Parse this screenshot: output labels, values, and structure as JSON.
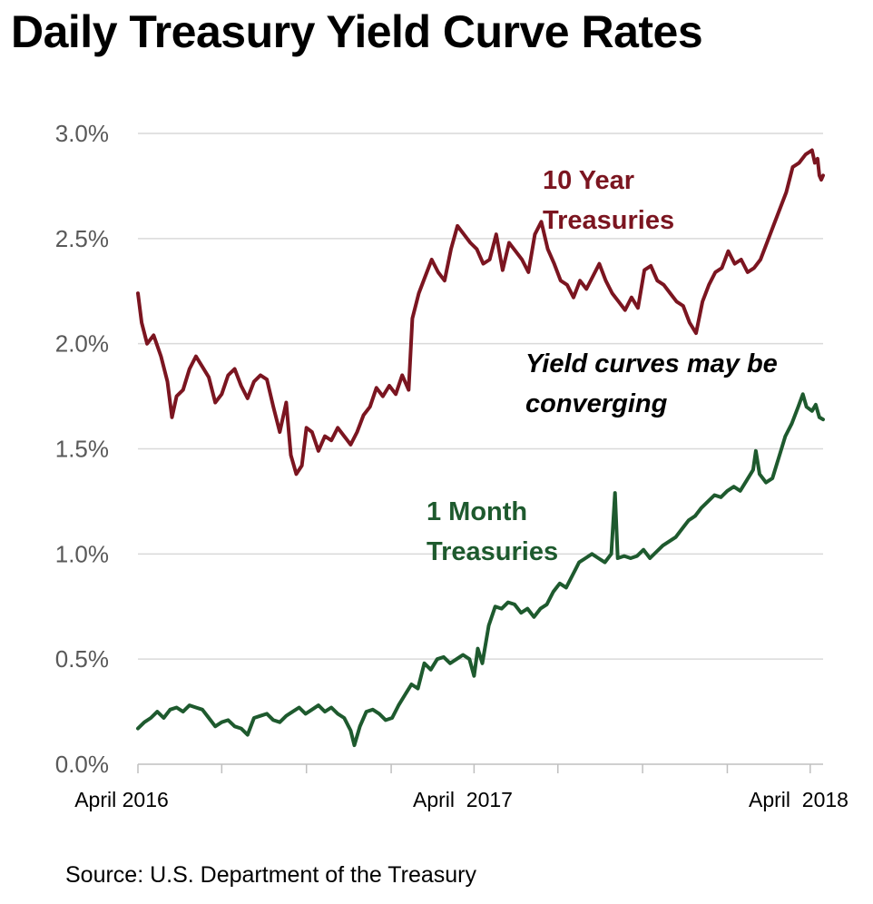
{
  "title": "Daily Treasury Yield Curve Rates",
  "source": "Source: U.S. Department of the Treasury",
  "annotation": [
    "Yield curves may be",
    "converging"
  ],
  "colors": {
    "ten_year": "#7b1520",
    "one_month": "#1e5a2e",
    "grid": "#d9d9d9",
    "axis": "#bfbfbf",
    "tick_text": "#595959"
  },
  "chart_data": {
    "type": "line",
    "x_tick_labels": [
      "April 2016",
      "April  2017",
      "April  2018"
    ],
    "y_tick_labels": [
      "0.0%",
      "0.5%",
      "1.0%",
      "1.5%",
      "2.0%",
      "2.5%",
      "3.0%"
    ],
    "ylim": [
      0,
      3.0
    ],
    "xlim": [
      "2016-04-01",
      "2018-04-15"
    ],
    "grid": true,
    "series": [
      {
        "name": "10 Year Treasuries",
        "name_lines": [
          "10 Year",
          "Treasuries"
        ],
        "color": "#7b1520",
        "points": [
          [
            "2016-04-01",
            2.24
          ],
          [
            "2016-04-05",
            2.1
          ],
          [
            "2016-04-11",
            2.0
          ],
          [
            "2016-04-18",
            2.04
          ],
          [
            "2016-04-26",
            1.94
          ],
          [
            "2016-05-03",
            1.82
          ],
          [
            "2016-05-08",
            1.65
          ],
          [
            "2016-05-13",
            1.75
          ],
          [
            "2016-05-20",
            1.78
          ],
          [
            "2016-05-27",
            1.88
          ],
          [
            "2016-06-03",
            1.94
          ],
          [
            "2016-06-10",
            1.89
          ],
          [
            "2016-06-17",
            1.84
          ],
          [
            "2016-06-24",
            1.72
          ],
          [
            "2016-07-01",
            1.76
          ],
          [
            "2016-07-08",
            1.85
          ],
          [
            "2016-07-15",
            1.88
          ],
          [
            "2016-07-22",
            1.8
          ],
          [
            "2016-07-29",
            1.74
          ],
          [
            "2016-08-05",
            1.82
          ],
          [
            "2016-08-12",
            1.85
          ],
          [
            "2016-08-19",
            1.83
          ],
          [
            "2016-08-26",
            1.7
          ],
          [
            "2016-09-02",
            1.58
          ],
          [
            "2016-09-09",
            1.72
          ],
          [
            "2016-09-14",
            1.47
          ],
          [
            "2016-09-20",
            1.38
          ],
          [
            "2016-09-26",
            1.42
          ],
          [
            "2016-10-01",
            1.6
          ],
          [
            "2016-10-07",
            1.58
          ],
          [
            "2016-10-14",
            1.49
          ],
          [
            "2016-10-21",
            1.56
          ],
          [
            "2016-10-28",
            1.54
          ],
          [
            "2016-11-04",
            1.6
          ],
          [
            "2016-11-11",
            1.56
          ],
          [
            "2016-11-18",
            1.52
          ],
          [
            "2016-11-25",
            1.58
          ],
          [
            "2016-12-02",
            1.66
          ],
          [
            "2016-12-09",
            1.7
          ],
          [
            "2016-12-16",
            1.79
          ],
          [
            "2016-12-23",
            1.75
          ],
          [
            "2016-12-30",
            1.8
          ],
          [
            "2017-01-06",
            1.76
          ],
          [
            "2017-01-13",
            1.85
          ],
          [
            "2017-01-20",
            1.78
          ],
          [
            "2017-01-24",
            2.12
          ],
          [
            "2017-01-31",
            2.24
          ],
          [
            "2017-02-07",
            2.32
          ],
          [
            "2017-02-14",
            2.4
          ],
          [
            "2017-02-21",
            2.34
          ],
          [
            "2017-02-28",
            2.3
          ],
          [
            "2017-03-07",
            2.45
          ],
          [
            "2017-03-14",
            2.56
          ],
          [
            "2017-03-21",
            2.52
          ],
          [
            "2017-03-28",
            2.48
          ],
          [
            "2017-04-04",
            2.45
          ],
          [
            "2017-04-11",
            2.38
          ],
          [
            "2017-04-18",
            2.4
          ],
          [
            "2017-04-25",
            2.52
          ],
          [
            "2017-05-02",
            2.35
          ],
          [
            "2017-05-09",
            2.48
          ],
          [
            "2017-05-16",
            2.44
          ],
          [
            "2017-05-23",
            2.4
          ],
          [
            "2017-05-30",
            2.34
          ],
          [
            "2017-06-06",
            2.52
          ],
          [
            "2017-06-13",
            2.58
          ],
          [
            "2017-06-20",
            2.45
          ],
          [
            "2017-06-27",
            2.38
          ],
          [
            "2017-07-04",
            2.3
          ],
          [
            "2017-07-11",
            2.28
          ],
          [
            "2017-07-18",
            2.22
          ],
          [
            "2017-07-25",
            2.3
          ],
          [
            "2017-08-01",
            2.26
          ],
          [
            "2017-08-08",
            2.32
          ],
          [
            "2017-08-15",
            2.38
          ],
          [
            "2017-08-22",
            2.3
          ],
          [
            "2017-08-29",
            2.24
          ],
          [
            "2017-09-05",
            2.2
          ],
          [
            "2017-09-12",
            2.16
          ],
          [
            "2017-09-19",
            2.22
          ],
          [
            "2017-09-26",
            2.17
          ],
          [
            "2017-10-03",
            2.35
          ],
          [
            "2017-10-10",
            2.37
          ],
          [
            "2017-10-17",
            2.3
          ],
          [
            "2017-10-24",
            2.28
          ],
          [
            "2017-10-31",
            2.24
          ],
          [
            "2017-11-07",
            2.2
          ],
          [
            "2017-11-14",
            2.18
          ],
          [
            "2017-11-21",
            2.1
          ],
          [
            "2017-11-28",
            2.05
          ],
          [
            "2017-12-05",
            2.2
          ],
          [
            "2017-12-12",
            2.28
          ],
          [
            "2017-12-19",
            2.34
          ],
          [
            "2017-12-26",
            2.36
          ],
          [
            "2018-01-02",
            2.44
          ],
          [
            "2018-01-09",
            2.38
          ],
          [
            "2018-01-16",
            2.4
          ],
          [
            "2018-01-23",
            2.34
          ],
          [
            "2018-01-30",
            2.36
          ],
          [
            "2018-02-06",
            2.4
          ],
          [
            "2018-02-13",
            2.48
          ],
          [
            "2018-02-20",
            2.56
          ],
          [
            "2018-02-27",
            2.64
          ],
          [
            "2018-03-06",
            2.72
          ],
          [
            "2018-03-13",
            2.84
          ],
          [
            "2018-03-20",
            2.86
          ],
          [
            "2018-03-27",
            2.9
          ],
          [
            "2018-04-03",
            2.92
          ],
          [
            "2018-04-06",
            2.86
          ],
          [
            "2018-04-09",
            2.88
          ],
          [
            "2018-04-11",
            2.8
          ],
          [
            "2018-04-13",
            2.78
          ],
          [
            "2018-04-15",
            2.8
          ]
        ]
      },
      {
        "name": "1 Month Treasuries",
        "name_lines": [
          "1 Month",
          "Treasuries"
        ],
        "color": "#1e5a2e",
        "points": [
          [
            "2016-04-01",
            0.17
          ],
          [
            "2016-04-08",
            0.2
          ],
          [
            "2016-04-15",
            0.22
          ],
          [
            "2016-04-22",
            0.25
          ],
          [
            "2016-04-29",
            0.22
          ],
          [
            "2016-05-06",
            0.26
          ],
          [
            "2016-05-13",
            0.27
          ],
          [
            "2016-05-20",
            0.25
          ],
          [
            "2016-05-27",
            0.28
          ],
          [
            "2016-06-03",
            0.27
          ],
          [
            "2016-06-10",
            0.26
          ],
          [
            "2016-06-17",
            0.22
          ],
          [
            "2016-06-24",
            0.18
          ],
          [
            "2016-07-01",
            0.2
          ],
          [
            "2016-07-08",
            0.21
          ],
          [
            "2016-07-15",
            0.18
          ],
          [
            "2016-07-22",
            0.17
          ],
          [
            "2016-07-29",
            0.14
          ],
          [
            "2016-08-05",
            0.22
          ],
          [
            "2016-08-12",
            0.23
          ],
          [
            "2016-08-19",
            0.24
          ],
          [
            "2016-08-26",
            0.21
          ],
          [
            "2016-09-02",
            0.2
          ],
          [
            "2016-09-09",
            0.23
          ],
          [
            "2016-09-16",
            0.25
          ],
          [
            "2016-09-23",
            0.27
          ],
          [
            "2016-09-30",
            0.24
          ],
          [
            "2016-10-07",
            0.26
          ],
          [
            "2016-10-14",
            0.28
          ],
          [
            "2016-10-21",
            0.25
          ],
          [
            "2016-10-28",
            0.27
          ],
          [
            "2016-11-04",
            0.24
          ],
          [
            "2016-11-11",
            0.22
          ],
          [
            "2016-11-18",
            0.16
          ],
          [
            "2016-11-22",
            0.09
          ],
          [
            "2016-11-28",
            0.18
          ],
          [
            "2016-12-05",
            0.25
          ],
          [
            "2016-12-12",
            0.26
          ],
          [
            "2016-12-19",
            0.24
          ],
          [
            "2016-12-26",
            0.21
          ],
          [
            "2017-01-02",
            0.22
          ],
          [
            "2017-01-09",
            0.28
          ],
          [
            "2017-01-16",
            0.33
          ],
          [
            "2017-01-23",
            0.38
          ],
          [
            "2017-01-30",
            0.36
          ],
          [
            "2017-02-06",
            0.48
          ],
          [
            "2017-02-13",
            0.45
          ],
          [
            "2017-02-20",
            0.5
          ],
          [
            "2017-02-27",
            0.51
          ],
          [
            "2017-03-06",
            0.48
          ],
          [
            "2017-03-13",
            0.5
          ],
          [
            "2017-03-20",
            0.52
          ],
          [
            "2017-03-27",
            0.5
          ],
          [
            "2017-04-01",
            0.42
          ],
          [
            "2017-04-05",
            0.55
          ],
          [
            "2017-04-10",
            0.48
          ],
          [
            "2017-04-17",
            0.66
          ],
          [
            "2017-04-24",
            0.75
          ],
          [
            "2017-05-01",
            0.74
          ],
          [
            "2017-05-08",
            0.77
          ],
          [
            "2017-05-15",
            0.76
          ],
          [
            "2017-05-22",
            0.72
          ],
          [
            "2017-05-29",
            0.74
          ],
          [
            "2017-06-05",
            0.7
          ],
          [
            "2017-06-12",
            0.74
          ],
          [
            "2017-06-19",
            0.76
          ],
          [
            "2017-06-26",
            0.82
          ],
          [
            "2017-07-03",
            0.86
          ],
          [
            "2017-07-10",
            0.84
          ],
          [
            "2017-07-17",
            0.9
          ],
          [
            "2017-07-24",
            0.96
          ],
          [
            "2017-07-31",
            0.98
          ],
          [
            "2017-08-07",
            1.0
          ],
          [
            "2017-08-14",
            0.98
          ],
          [
            "2017-08-21",
            0.96
          ],
          [
            "2017-08-28",
            1.0
          ],
          [
            "2017-09-01",
            1.29
          ],
          [
            "2017-09-04",
            0.98
          ],
          [
            "2017-09-11",
            0.99
          ],
          [
            "2017-09-18",
            0.98
          ],
          [
            "2017-09-25",
            0.99
          ],
          [
            "2017-10-02",
            1.02
          ],
          [
            "2017-10-09",
            0.98
          ],
          [
            "2017-10-16",
            1.01
          ],
          [
            "2017-10-23",
            1.04
          ],
          [
            "2017-10-30",
            1.06
          ],
          [
            "2017-11-06",
            1.08
          ],
          [
            "2017-11-13",
            1.12
          ],
          [
            "2017-11-20",
            1.16
          ],
          [
            "2017-11-27",
            1.18
          ],
          [
            "2017-12-04",
            1.22
          ],
          [
            "2017-12-11",
            1.25
          ],
          [
            "2017-12-18",
            1.28
          ],
          [
            "2017-12-25",
            1.27
          ],
          [
            "2018-01-01",
            1.3
          ],
          [
            "2018-01-08",
            1.32
          ],
          [
            "2018-01-15",
            1.3
          ],
          [
            "2018-01-22",
            1.35
          ],
          [
            "2018-01-29",
            1.4
          ],
          [
            "2018-02-01",
            1.49
          ],
          [
            "2018-02-05",
            1.38
          ],
          [
            "2018-02-12",
            1.34
          ],
          [
            "2018-02-19",
            1.36
          ],
          [
            "2018-02-26",
            1.46
          ],
          [
            "2018-03-05",
            1.56
          ],
          [
            "2018-03-12",
            1.62
          ],
          [
            "2018-03-19",
            1.7
          ],
          [
            "2018-03-24",
            1.76
          ],
          [
            "2018-03-28",
            1.7
          ],
          [
            "2018-04-03",
            1.68
          ],
          [
            "2018-04-07",
            1.71
          ],
          [
            "2018-04-11",
            1.65
          ],
          [
            "2018-04-15",
            1.64
          ]
        ]
      }
    ]
  }
}
